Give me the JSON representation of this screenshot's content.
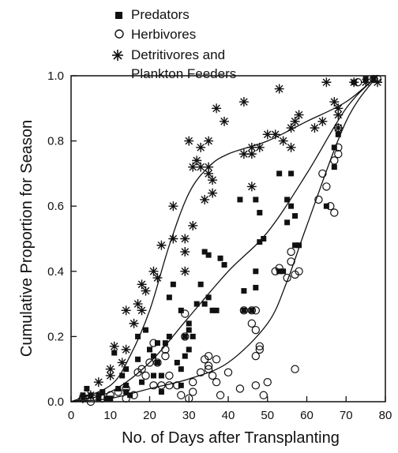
{
  "chart_data": {
    "type": "scatter",
    "xlabel": "No. of Days after Transplanting",
    "ylabel": "Cumulative Proportion for Season",
    "xlim": [
      0,
      80
    ],
    "ylim": [
      0,
      1.0
    ],
    "x_ticks": [
      {
        "value": 0,
        "label": "0"
      },
      {
        "value": 10,
        "label": "10"
      },
      {
        "value": 20,
        "label": "20"
      },
      {
        "value": 30,
        "label": "30"
      },
      {
        "value": 40,
        "label": "40"
      },
      {
        "value": 50,
        "label": "50"
      },
      {
        "value": 60,
        "label": "60"
      },
      {
        "value": 70,
        "label": "70"
      },
      {
        "value": 80,
        "label": "80"
      }
    ],
    "y_ticks": [
      {
        "value": 0.0,
        "label": "0.0"
      },
      {
        "value": 0.2,
        "label": "0.2"
      },
      {
        "value": 0.4,
        "label": "0.4"
      },
      {
        "value": 0.6,
        "label": "0.6"
      },
      {
        "value": 0.8,
        "label": "0.8"
      },
      {
        "value": 1.0,
        "label": "1.0"
      }
    ],
    "grid": false,
    "legend": {
      "placement": "top",
      "entries": [
        {
          "marker": "filled-square",
          "label": "Predators"
        },
        {
          "marker": "open-circle",
          "label": "Herbivores"
        },
        {
          "marker": "asterisk",
          "label": "Detritivores and",
          "label_line2": "Plankton Feeders"
        }
      ]
    },
    "series": [
      {
        "marker": "filled-square",
        "points": [
          [
            3,
            0.02
          ],
          [
            4,
            0.04
          ],
          [
            5,
            0.02
          ],
          [
            7,
            0.02
          ],
          [
            7,
            0.01
          ],
          [
            8,
            0.03
          ],
          [
            9,
            0.01
          ],
          [
            10,
            0.01
          ],
          [
            11,
            0.15
          ],
          [
            12,
            0.04
          ],
          [
            13,
            0.08
          ],
          [
            14,
            0.1
          ],
          [
            14,
            0.05
          ],
          [
            14,
            0.03
          ],
          [
            15,
            0.02
          ],
          [
            17,
            0.2
          ],
          [
            17,
            0.13
          ],
          [
            18,
            0.06
          ],
          [
            19,
            0.22
          ],
          [
            20,
            0.16
          ],
          [
            21,
            0.14
          ],
          [
            21,
            0.08
          ],
          [
            22,
            0.18
          ],
          [
            22,
            0.12
          ],
          [
            23,
            0.08
          ],
          [
            23,
            0.03
          ],
          [
            24,
            0.18
          ],
          [
            25,
            0.2
          ],
          [
            25,
            0.32
          ],
          [
            26,
            0.36
          ],
          [
            27,
            0.12
          ],
          [
            28,
            0.05
          ],
          [
            28,
            0.1
          ],
          [
            28,
            0.28
          ],
          [
            29,
            0.2
          ],
          [
            29,
            0.14
          ],
          [
            30,
            0.16
          ],
          [
            30,
            0.22
          ],
          [
            30,
            0.24
          ],
          [
            31,
            0.2
          ],
          [
            32,
            0.3
          ],
          [
            33,
            0.36
          ],
          [
            34,
            0.3
          ],
          [
            34,
            0.46
          ],
          [
            35,
            0.32
          ],
          [
            35,
            0.45
          ],
          [
            36,
            0.28
          ],
          [
            37,
            0.28
          ],
          [
            38,
            0.44
          ],
          [
            39,
            0.42
          ],
          [
            43,
            0.62
          ],
          [
            44,
            0.34
          ],
          [
            44,
            0.28
          ],
          [
            46,
            0.28
          ],
          [
            47,
            0.4
          ],
          [
            47,
            0.35
          ],
          [
            47,
            0.62
          ],
          [
            48,
            0.58
          ],
          [
            48,
            0.49
          ],
          [
            49,
            0.5
          ],
          [
            53,
            0.7
          ],
          [
            53,
            0.4
          ],
          [
            54,
            0.4
          ],
          [
            55,
            0.62
          ],
          [
            55,
            0.55
          ],
          [
            56,
            0.7
          ],
          [
            56,
            0.6
          ],
          [
            57,
            0.48
          ],
          [
            57,
            0.57
          ],
          [
            58,
            0.48
          ],
          [
            65,
            0.6
          ],
          [
            67,
            0.72
          ],
          [
            67,
            0.78
          ],
          [
            68,
            0.82
          ],
          [
            72,
            0.98
          ],
          [
            75,
            0.99
          ],
          [
            77,
            0.99
          ]
        ],
        "fit": [
          [
            0,
            0.0
          ],
          [
            10,
            0.03
          ],
          [
            20,
            0.12
          ],
          [
            30,
            0.26
          ],
          [
            40,
            0.4
          ],
          [
            50,
            0.52
          ],
          [
            60,
            0.7
          ],
          [
            70,
            0.9
          ],
          [
            78,
            1.0
          ]
        ]
      },
      {
        "marker": "open-circle",
        "points": [
          [
            3,
            0.01
          ],
          [
            5,
            0.0
          ],
          [
            8,
            0.01
          ],
          [
            10,
            0.02
          ],
          [
            12,
            0.03
          ],
          [
            14,
            0.01
          ],
          [
            14,
            0.04
          ],
          [
            16,
            0.02
          ],
          [
            17,
            0.09
          ],
          [
            18,
            0.1
          ],
          [
            19,
            0.08
          ],
          [
            20,
            0.12
          ],
          [
            21,
            0.18
          ],
          [
            21,
            0.05
          ],
          [
            22,
            0.12
          ],
          [
            23,
            0.05
          ],
          [
            24,
            0.16
          ],
          [
            24,
            0.14
          ],
          [
            25,
            0.08
          ],
          [
            25,
            0.05
          ],
          [
            27,
            0.05
          ],
          [
            28,
            0.02
          ],
          [
            29,
            0.27
          ],
          [
            29,
            0.2
          ],
          [
            30,
            0.01
          ],
          [
            31,
            0.06
          ],
          [
            31,
            0.03
          ],
          [
            33,
            0.09
          ],
          [
            34,
            0.13
          ],
          [
            35,
            0.14
          ],
          [
            35,
            0.11
          ],
          [
            35,
            0.1
          ],
          [
            36,
            0.08
          ],
          [
            37,
            0.13
          ],
          [
            37,
            0.06
          ],
          [
            38,
            0.02
          ],
          [
            40,
            0.09
          ],
          [
            43,
            0.04
          ],
          [
            44,
            0.28
          ],
          [
            46,
            0.28
          ],
          [
            46,
            0.24
          ],
          [
            47,
            0.28
          ],
          [
            47,
            0.22
          ],
          [
            47,
            0.14
          ],
          [
            47,
            0.05
          ],
          [
            48,
            0.17
          ],
          [
            48,
            0.16
          ],
          [
            49,
            0.02
          ],
          [
            50,
            0.06
          ],
          [
            52,
            0.4
          ],
          [
            53,
            0.41
          ],
          [
            55,
            0.38
          ],
          [
            56,
            0.43
          ],
          [
            56,
            0.46
          ],
          [
            57,
            0.39
          ],
          [
            57,
            0.1
          ],
          [
            58,
            0.4
          ],
          [
            63,
            0.62
          ],
          [
            64,
            0.7
          ],
          [
            65,
            0.66
          ],
          [
            66,
            0.6
          ],
          [
            67,
            0.58
          ],
          [
            67,
            0.74
          ],
          [
            68,
            0.78
          ],
          [
            68,
            0.76
          ],
          [
            68,
            0.84
          ],
          [
            73,
            0.98
          ],
          [
            77,
            0.99
          ],
          [
            78,
            0.99
          ]
        ],
        "fit": [
          [
            0,
            0.0
          ],
          [
            10,
            0.01
          ],
          [
            20,
            0.04
          ],
          [
            30,
            0.07
          ],
          [
            40,
            0.12
          ],
          [
            50,
            0.24
          ],
          [
            55,
            0.37
          ],
          [
            60,
            0.54
          ],
          [
            70,
            0.86
          ],
          [
            78,
            1.0
          ]
        ]
      },
      {
        "marker": "asterisk",
        "points": [
          [
            3,
            0.01
          ],
          [
            5,
            0.02
          ],
          [
            7,
            0.06
          ],
          [
            10,
            0.1
          ],
          [
            10,
            0.08
          ],
          [
            11,
            0.17
          ],
          [
            13,
            0.12
          ],
          [
            14,
            0.16
          ],
          [
            14,
            0.28
          ],
          [
            16,
            0.24
          ],
          [
            17,
            0.3
          ],
          [
            18,
            0.28
          ],
          [
            18,
            0.36
          ],
          [
            19,
            0.34
          ],
          [
            21,
            0.4
          ],
          [
            22,
            0.38
          ],
          [
            23,
            0.48
          ],
          [
            26,
            0.5
          ],
          [
            26,
            0.6
          ],
          [
            29,
            0.5
          ],
          [
            29,
            0.46
          ],
          [
            29,
            0.4
          ],
          [
            30,
            0.8
          ],
          [
            31,
            0.54
          ],
          [
            31,
            0.72
          ],
          [
            32,
            0.74
          ],
          [
            33,
            0.78
          ],
          [
            33,
            0.72
          ],
          [
            34,
            0.62
          ],
          [
            35,
            0.8
          ],
          [
            35,
            0.7
          ],
          [
            35,
            0.72
          ],
          [
            36,
            0.68
          ],
          [
            36,
            0.64
          ],
          [
            37,
            0.9
          ],
          [
            39,
            0.86
          ],
          [
            44,
            0.76
          ],
          [
            44,
            0.92
          ],
          [
            46,
            0.76
          ],
          [
            46,
            0.66
          ],
          [
            46,
            0.78
          ],
          [
            48,
            0.78
          ],
          [
            50,
            0.82
          ],
          [
            52,
            0.82
          ],
          [
            53,
            0.96
          ],
          [
            54,
            0.8
          ],
          [
            56,
            0.84
          ],
          [
            56,
            0.78
          ],
          [
            57,
            0.86
          ],
          [
            58,
            0.88
          ],
          [
            62,
            0.84
          ],
          [
            64,
            0.86
          ],
          [
            65,
            0.98
          ],
          [
            67,
            0.92
          ],
          [
            68,
            0.84
          ],
          [
            68,
            0.9
          ],
          [
            68,
            0.88
          ],
          [
            72,
            0.98
          ],
          [
            75,
            0.98
          ],
          [
            78,
            0.98
          ]
        ],
        "fit": [
          [
            0,
            0.0
          ],
          [
            10,
            0.05
          ],
          [
            15,
            0.14
          ],
          [
            20,
            0.28
          ],
          [
            25,
            0.48
          ],
          [
            30,
            0.64
          ],
          [
            35,
            0.72
          ],
          [
            40,
            0.76
          ],
          [
            50,
            0.8
          ],
          [
            60,
            0.86
          ],
          [
            70,
            0.92
          ],
          [
            78,
            1.0
          ]
        ]
      }
    ]
  }
}
